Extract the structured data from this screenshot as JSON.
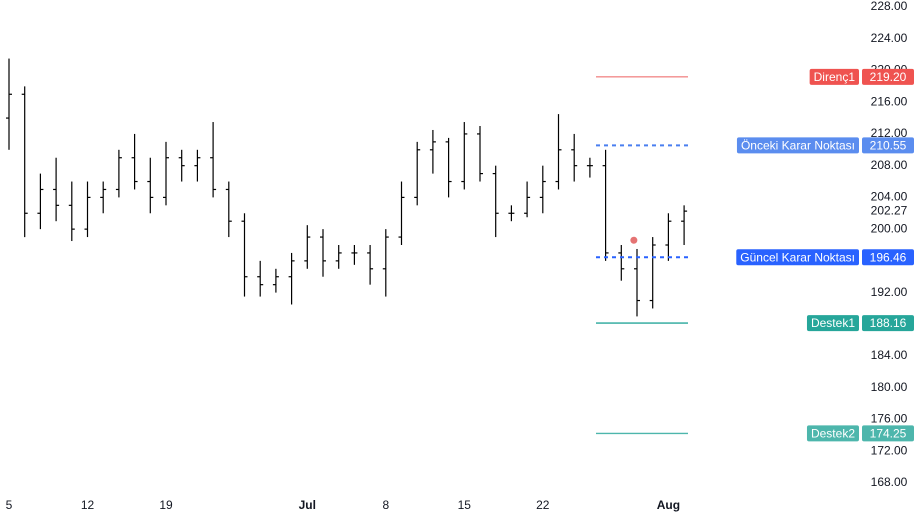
{
  "chart_data": {
    "type": "ohlc",
    "categories": [
      "5",
      null,
      null,
      null,
      null,
      "12",
      null,
      null,
      null,
      null,
      "19",
      null,
      null,
      null,
      null,
      null,
      null,
      null,
      null,
      "Jul",
      null,
      null,
      null,
      null,
      "8",
      null,
      null,
      null,
      null,
      "15",
      null,
      null,
      null,
      null,
      "22",
      null,
      null,
      null,
      null,
      null,
      null,
      null,
      "Aug",
      null
    ],
    "open": [
      214,
      217,
      202,
      205,
      203,
      200,
      204,
      205,
      209,
      206,
      204,
      209,
      208,
      209,
      205,
      201,
      194,
      193,
      194,
      196,
      199,
      196,
      197,
      197,
      195,
      199,
      204,
      210,
      211,
      206,
      212,
      207,
      202,
      202,
      204,
      206,
      210,
      208,
      208,
      197,
      195,
      191,
      198,
      201
    ],
    "high": [
      221.5,
      218,
      207,
      209,
      206,
      206,
      206,
      210,
      212,
      209,
      211,
      210,
      210,
      213.5,
      206,
      202,
      196,
      195,
      197,
      200.5,
      200,
      198,
      198,
      198,
      200,
      206,
      211,
      212.5,
      211.5,
      213.5,
      213,
      208,
      203,
      206,
      208,
      214.5,
      212,
      209,
      210,
      198,
      197.5,
      199,
      202,
      203
    ],
    "low": [
      210,
      199,
      200,
      201,
      198.5,
      199,
      202,
      204,
      205,
      202,
      203,
      206,
      206,
      204,
      199,
      191.5,
      191.5,
      192,
      190.5,
      195,
      194,
      195,
      195.5,
      193,
      191.5,
      198,
      203,
      207,
      204,
      205,
      206,
      199,
      201,
      201.5,
      202,
      205,
      206,
      206.5,
      196,
      193.5,
      189,
      190,
      196,
      198
    ],
    "close": [
      217,
      202,
      205,
      203,
      200,
      204,
      205,
      209,
      206,
      204,
      209,
      208,
      209,
      205,
      201,
      194,
      193,
      194,
      196,
      199,
      196,
      197,
      197,
      195,
      199,
      204,
      210,
      211,
      206,
      212,
      207,
      202,
      202,
      204,
      206,
      210,
      208,
      208,
      197,
      195,
      191,
      198,
      201,
      202.27
    ],
    "color": "#000000",
    "ylim": [
      168,
      228
    ],
    "yticks": [
      {
        "value": 228,
        "label": "228.00"
      },
      {
        "value": 224,
        "label": "224.00"
      },
      {
        "value": 220,
        "label": "220.00"
      },
      {
        "value": 216,
        "label": "216.00"
      },
      {
        "value": 212,
        "label": "212.00"
      },
      {
        "value": 208,
        "label": "208.00"
      },
      {
        "value": 204,
        "label": "204.00"
      },
      {
        "value": 200,
        "label": "200.00"
      },
      {
        "value": 196,
        "label": "196.00"
      },
      {
        "value": 192,
        "label": "192.00"
      },
      {
        "value": 188,
        "label": "188.00"
      },
      {
        "value": 184,
        "label": "184.00"
      },
      {
        "value": 180,
        "label": "180.00"
      },
      {
        "value": 176,
        "label": "176.00"
      },
      {
        "value": 172,
        "label": "172.00"
      },
      {
        "value": 168,
        "label": "168.00"
      }
    ],
    "levels": [
      {
        "name": "Direnç1",
        "value": 219.2,
        "value_label": "219.20",
        "color": "#ef5350",
        "line_color": "#f28b8b",
        "dashed": false
      },
      {
        "name": "Önceki Karar Noktası",
        "value": 210.55,
        "value_label": "210.55",
        "color": "#5b8def",
        "line_color": "#4a7ff0",
        "dashed": true
      },
      {
        "name": "Güncel Karar Noktası",
        "value": 196.46,
        "value_label": "196.46",
        "color": "#2962ff",
        "line_color": "#2962ff",
        "dashed": true
      },
      {
        "name": "Destek1",
        "value": 188.16,
        "value_label": "188.16",
        "color": "#26a69a",
        "line_color": "#26a69a",
        "dashed": false
      },
      {
        "name": "Destek2",
        "value": 174.25,
        "value_label": "174.25",
        "color": "#4db6ac",
        "line_color": "#4db6ac",
        "dashed": false
      }
    ],
    "marker": {
      "x": 39.8,
      "value": 198.6,
      "color": "#e57373"
    }
  }
}
